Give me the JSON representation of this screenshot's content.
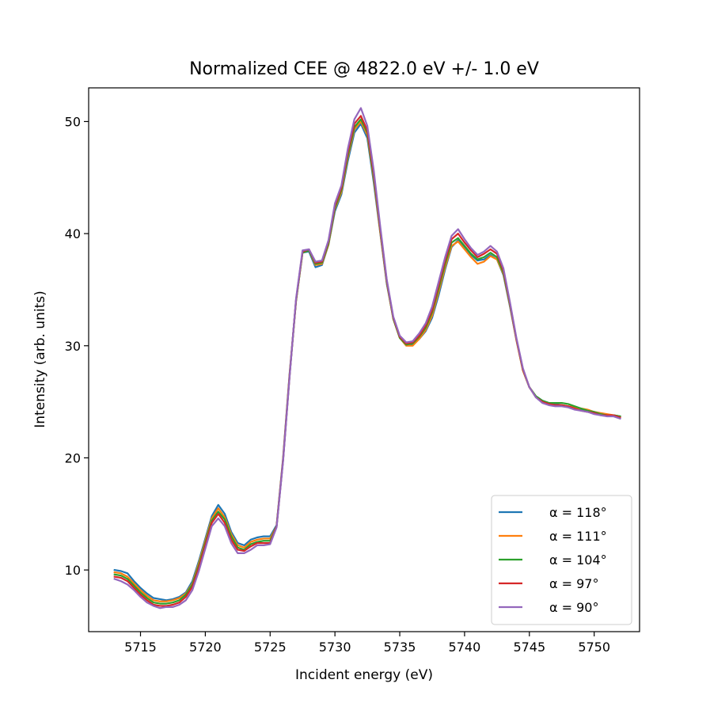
{
  "chart_data": {
    "type": "line",
    "title": "Normalized CEE @ 4822.0 eV +/- 1.0 eV",
    "xlabel": "Incident energy (eV)",
    "ylabel": "Intensity (arb. units)",
    "xlim": [
      5711.0,
      5753.5
    ],
    "ylim": [
      4.5,
      53.0
    ],
    "xticks": [
      5715,
      5720,
      5725,
      5730,
      5735,
      5740,
      5745,
      5750
    ],
    "yticks": [
      10,
      20,
      30,
      40,
      50
    ],
    "grid": false,
    "legend_position": "lower-right",
    "x": [
      5713.0,
      5713.5,
      5714.0,
      5714.5,
      5715.0,
      5715.5,
      5716.0,
      5716.5,
      5717.0,
      5717.5,
      5718.0,
      5718.5,
      5719.0,
      5719.5,
      5720.0,
      5720.5,
      5721.0,
      5721.5,
      5722.0,
      5722.5,
      5723.0,
      5723.5,
      5724.0,
      5724.5,
      5725.0,
      5725.5,
      5726.0,
      5726.5,
      5727.0,
      5727.5,
      5728.0,
      5728.5,
      5729.0,
      5729.5,
      5730.0,
      5730.5,
      5731.0,
      5731.5,
      5732.0,
      5732.5,
      5733.0,
      5733.5,
      5734.0,
      5734.5,
      5735.0,
      5735.5,
      5736.0,
      5736.5,
      5737.0,
      5737.5,
      5738.0,
      5738.5,
      5739.0,
      5739.5,
      5740.0,
      5740.5,
      5741.0,
      5741.5,
      5742.0,
      5742.5,
      5743.0,
      5743.5,
      5744.0,
      5744.5,
      5745.0,
      5745.5,
      5746.0,
      5746.5,
      5747.0,
      5747.5,
      5748.0,
      5748.5,
      5749.0,
      5749.5,
      5750.0,
      5750.5,
      5751.0,
      5751.5,
      5752.0
    ],
    "series": [
      {
        "name": "α = 118°",
        "color": "#1f77b4",
        "values": [
          10.0,
          9.9,
          9.7,
          9.0,
          8.4,
          7.9,
          7.5,
          7.4,
          7.3,
          7.4,
          7.6,
          8.0,
          9.0,
          10.8,
          12.8,
          14.8,
          15.8,
          15.0,
          13.4,
          12.4,
          12.2,
          12.7,
          12.9,
          13.0,
          13.0,
          14.0,
          20.0,
          27.5,
          34.0,
          38.3,
          38.4,
          37.0,
          37.2,
          39.0,
          42.0,
          43.5,
          46.5,
          49.0,
          49.8,
          48.5,
          44.5,
          40.0,
          35.5,
          32.5,
          30.8,
          30.2,
          30.1,
          30.6,
          31.3,
          32.5,
          34.5,
          36.8,
          38.8,
          39.4,
          38.7,
          38.1,
          37.6,
          37.7,
          38.1,
          37.7,
          36.3,
          33.5,
          30.5,
          27.8,
          26.3,
          25.5,
          25.1,
          24.9,
          24.8,
          24.7,
          24.6,
          24.5,
          24.3,
          24.2,
          24.1,
          23.9,
          23.8,
          23.8,
          23.7
        ]
      },
      {
        "name": "α = 111°",
        "color": "#ff7f0e",
        "values": [
          9.8,
          9.7,
          9.4,
          8.8,
          8.2,
          7.7,
          7.3,
          7.2,
          7.2,
          7.3,
          7.5,
          7.9,
          8.8,
          10.6,
          12.6,
          14.6,
          15.5,
          14.7,
          13.2,
          12.2,
          12.0,
          12.5,
          12.7,
          12.8,
          12.8,
          13.9,
          19.9,
          27.4,
          34.0,
          38.3,
          38.5,
          37.2,
          37.3,
          39.0,
          42.2,
          43.7,
          46.8,
          49.3,
          50.0,
          48.8,
          44.8,
          40.1,
          35.6,
          32.4,
          30.7,
          30.0,
          30.0,
          30.6,
          31.4,
          32.7,
          34.8,
          37.0,
          38.9,
          39.3,
          38.6,
          37.9,
          37.3,
          37.5,
          38.0,
          37.7,
          36.4,
          33.6,
          30.5,
          27.8,
          26.3,
          25.5,
          25.0,
          24.8,
          24.7,
          24.7,
          24.6,
          24.5,
          24.4,
          24.3,
          24.1,
          24.0,
          23.9,
          23.8,
          23.7
        ]
      },
      {
        "name": "α = 104°",
        "color": "#2ca02c",
        "values": [
          9.6,
          9.5,
          9.2,
          8.6,
          8.0,
          7.5,
          7.1,
          7.0,
          7.0,
          7.1,
          7.3,
          7.8,
          8.7,
          10.4,
          12.4,
          14.4,
          15.2,
          14.5,
          13.0,
          12.0,
          11.8,
          12.3,
          12.5,
          12.6,
          12.6,
          13.9,
          19.8,
          27.3,
          34.0,
          38.3,
          38.5,
          37.3,
          37.4,
          39.1,
          42.3,
          43.9,
          47.0,
          49.5,
          50.2,
          49.0,
          45.0,
          40.3,
          35.7,
          32.4,
          30.7,
          30.1,
          30.2,
          30.8,
          31.6,
          33.0,
          35.1,
          37.3,
          39.2,
          39.6,
          38.9,
          38.2,
          37.7,
          37.9,
          38.3,
          37.9,
          36.5,
          33.7,
          30.6,
          27.9,
          26.3,
          25.5,
          25.1,
          24.9,
          24.9,
          24.9,
          24.8,
          24.6,
          24.4,
          24.2,
          24.1,
          23.9,
          23.8,
          23.8,
          23.7
        ]
      },
      {
        "name": "α = 97°",
        "color": "#d62728",
        "values": [
          9.4,
          9.3,
          9.0,
          8.4,
          7.8,
          7.3,
          6.9,
          6.8,
          6.8,
          6.9,
          7.1,
          7.6,
          8.5,
          10.2,
          12.2,
          14.2,
          15.0,
          14.2,
          12.7,
          11.8,
          11.7,
          12.1,
          12.4,
          12.4,
          12.4,
          13.9,
          19.8,
          27.3,
          34.1,
          38.4,
          38.6,
          37.4,
          37.5,
          39.3,
          42.5,
          44.1,
          47.3,
          49.8,
          50.5,
          49.2,
          45.3,
          40.4,
          35.8,
          32.5,
          30.8,
          30.2,
          30.3,
          30.9,
          31.8,
          33.2,
          35.4,
          37.6,
          39.5,
          40.0,
          39.2,
          38.5,
          37.9,
          38.2,
          38.6,
          38.2,
          36.7,
          33.8,
          30.6,
          27.9,
          26.3,
          25.4,
          25.0,
          24.8,
          24.7,
          24.7,
          24.6,
          24.4,
          24.2,
          24.1,
          24.0,
          23.8,
          23.8,
          23.8,
          23.6
        ]
      },
      {
        "name": "α = 90°",
        "color": "#9467bd",
        "values": [
          9.2,
          9.0,
          8.7,
          8.2,
          7.6,
          7.1,
          6.8,
          6.6,
          6.7,
          6.7,
          6.9,
          7.3,
          8.2,
          9.9,
          11.9,
          13.9,
          14.6,
          13.9,
          12.4,
          11.5,
          11.5,
          11.8,
          12.2,
          12.2,
          12.3,
          13.8,
          19.7,
          27.2,
          34.2,
          38.5,
          38.6,
          37.5,
          37.6,
          39.4,
          42.7,
          44.3,
          47.6,
          50.2,
          51.2,
          49.6,
          45.6,
          40.6,
          35.9,
          32.6,
          30.9,
          30.3,
          30.4,
          31.1,
          32.0,
          33.5,
          35.7,
          37.9,
          39.8,
          40.4,
          39.5,
          38.7,
          38.1,
          38.4,
          38.9,
          38.4,
          36.9,
          33.9,
          30.7,
          28.0,
          26.3,
          25.4,
          24.9,
          24.7,
          24.6,
          24.6,
          24.5,
          24.3,
          24.2,
          24.1,
          23.9,
          23.8,
          23.7,
          23.7,
          23.5
        ]
      }
    ]
  }
}
